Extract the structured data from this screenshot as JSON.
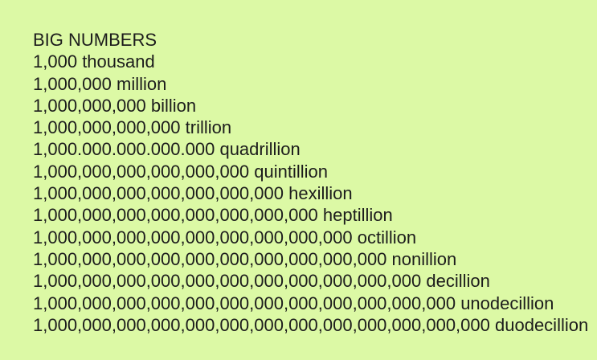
{
  "page": {
    "background_color": "#dcf9a5",
    "text_color": "#1c1c1c"
  },
  "title": "BIG NUMBERS",
  "rows": [
    {
      "number": "1,000",
      "name": "thousand"
    },
    {
      "number": "1,000,000",
      "name": "million"
    },
    {
      "number": "1,000,000,000",
      "name": "billion"
    },
    {
      "number": "1,000,000,000,000",
      "name": "trillion"
    },
    {
      "number": "1,000.000.000.000.000",
      "name": "quadrillion"
    },
    {
      "number": "1,000,000,000,000,000,000",
      "name": "quintillion"
    },
    {
      "number": "1,000,000,000,000,000,000,000",
      "name": "hexillion"
    },
    {
      "number": "1,000,000,000,000,000,000,000,000",
      "name": "heptillion"
    },
    {
      "number": "1,000,000,000,000,000,000,000,000,000",
      "name": "octillion"
    },
    {
      "number": "1,000,000,000,000,000,000,000,000,000,000",
      "name": "nonillion"
    },
    {
      "number": "1,000,000,000,000,000,000,000,000,000,000,000",
      "name": "decillion"
    },
    {
      "number": "1,000,000,000,000,000,000,000,000,000,000,000,000",
      "name": "unodecillion"
    },
    {
      "number": "1,000,000,000,000,000,000,000,000,000,000,000,000,000",
      "name": "duodecillion"
    }
  ]
}
